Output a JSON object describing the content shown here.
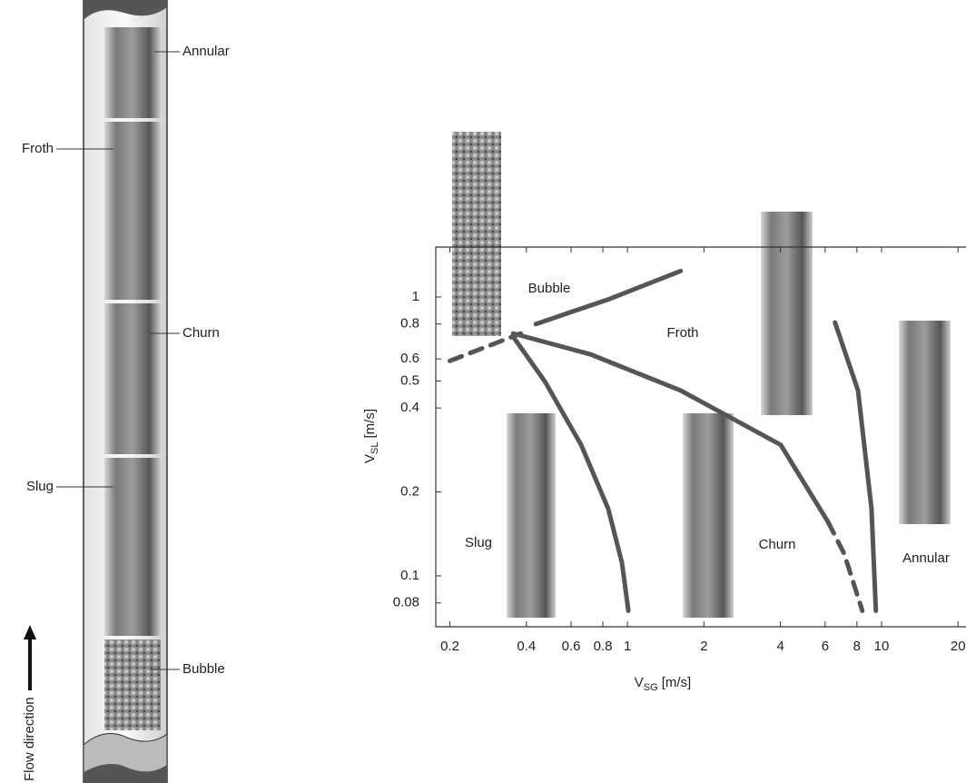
{
  "pipe": {
    "labels": [
      "Annular",
      "Froth",
      "Churn",
      "Slug",
      "Bubble"
    ],
    "flow_direction": "Flow direction"
  },
  "chart_data": {
    "type": "line",
    "xlabel": {
      "base": "V",
      "sub": "SG",
      "unit": "[m/s]"
    },
    "ylabel": {
      "base": "V",
      "sub": "SL",
      "unit": "[m/s]"
    },
    "xscale": "log",
    "yscale": "log",
    "xlim": [
      0.176,
      21.5
    ],
    "ylim": [
      0.0657,
      1.51
    ],
    "xticks": [
      0.2,
      0.4,
      0.6,
      0.8,
      1,
      2,
      4,
      6,
      8,
      10,
      20
    ],
    "yticks": [
      0.08,
      0.1,
      0.2,
      0.4,
      0.5,
      0.6,
      0.8,
      1
    ],
    "annotations": [
      "Bubble",
      "Froth",
      "Slug",
      "Churn",
      "Annular"
    ],
    "series": [
      {
        "color": "#555555",
        "style": "dashed",
        "x": [
          0.2,
          0.38
        ],
        "values": [
          0.59,
          0.74
        ]
      },
      {
        "color": "#555555",
        "style": "solid",
        "x": [
          0.436,
          0.84,
          1.62
        ],
        "values": [
          0.8,
          0.98,
          1.24
        ]
      },
      {
        "color": "#555555",
        "style": "solid",
        "x": [
          0.355,
          0.473,
          0.657,
          0.84,
          0.952,
          1.008
        ],
        "values": [
          0.72,
          0.498,
          0.295,
          0.174,
          0.111,
          0.075
        ]
      },
      {
        "color": "#555555",
        "style": "solid",
        "x": [
          0.355,
          0.714,
          1.62,
          4.01,
          6.16
        ],
        "values": [
          0.74,
          0.623,
          0.462,
          0.295,
          0.156
        ]
      },
      {
        "color": "#555555",
        "style": "dashed",
        "x": [
          6.16,
          7.13,
          8.4
        ],
        "values": [
          0.156,
          0.12,
          0.075
        ]
      },
      {
        "color": "#555555",
        "style": "solid",
        "x": [
          6.56,
          8.08,
          9.13,
          9.5
        ],
        "values": [
          0.81,
          0.462,
          0.174,
          0.075
        ]
      }
    ]
  }
}
